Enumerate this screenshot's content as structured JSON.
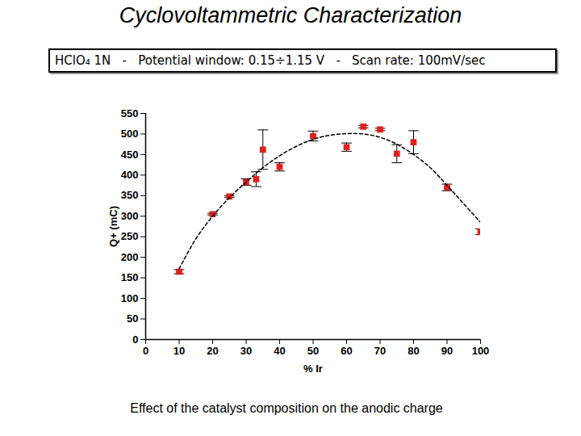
{
  "chart_data": {
    "type": "scatter",
    "title": "Cyclovoltammetric Characterization",
    "subtitle": "HClO₄ 1N   -   Potential window: 0.15÷1.15 V   -   Scan rate: 100mV/sec",
    "caption": "Effect of the catalyst composition on the anodic charge",
    "x_label": "% Ir",
    "y_label": "Q+ (mC)",
    "xlim": [
      0,
      100
    ],
    "xticks": [
      0,
      10,
      20,
      30,
      40,
      50,
      60,
      70,
      80,
      90,
      100
    ],
    "ylim": [
      0,
      550
    ],
    "yticks": [
      0,
      50,
      100,
      150,
      200,
      250,
      300,
      350,
      400,
      450,
      500,
      550
    ],
    "grid": false,
    "series": [
      {
        "type": "scatter",
        "color": "#e0201b",
        "marker": "square",
        "x": [
          10,
          20,
          25,
          30,
          33,
          35,
          40,
          50,
          60,
          65,
          70,
          75,
          80,
          90,
          100
        ],
        "values": [
          165,
          305,
          348,
          383,
          390,
          462,
          420,
          495,
          468,
          518,
          511,
          452,
          480,
          370,
          262
        ],
        "errors": [
          5,
          2,
          2,
          8,
          18,
          48,
          10,
          12,
          10,
          3,
          3,
          22,
          28,
          8,
          7
        ]
      },
      {
        "type": "line",
        "color": "#000000",
        "line_style": "dashed",
        "x": [
          10,
          15,
          20,
          25,
          30,
          35,
          40,
          45,
          50,
          55,
          60,
          65,
          70,
          75,
          80,
          85,
          90,
          95,
          100
        ],
        "values": [
          172,
          245,
          300,
          345,
          383,
          418,
          447,
          470,
          487,
          497,
          501,
          500,
          492,
          475,
          450,
          418,
          375,
          330,
          285
        ]
      }
    ]
  }
}
